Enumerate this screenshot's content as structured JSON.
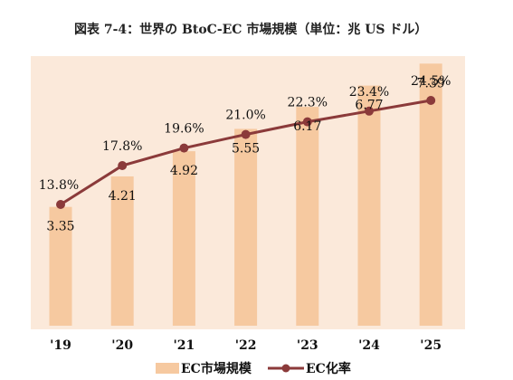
{
  "chart_data": {
    "type": "bar",
    "title": "図表 7-4：世界の BtoC-EC 市場規模（単位：兆 US ドル）",
    "categories": [
      "'19",
      "'20",
      "'21",
      "'22",
      "'23",
      "'24",
      "'25"
    ],
    "series": [
      {
        "name": "EC市場規模",
        "type": "bar",
        "values": [
          3.35,
          4.21,
          4.92,
          5.55,
          6.17,
          6.77,
          7.39
        ],
        "labels": [
          "3.35",
          "4.21",
          "4.92",
          "5.55",
          "6.17",
          "6.77",
          "7.39"
        ],
        "color": "#f6c9a0"
      },
      {
        "name": "EC化率",
        "type": "line",
        "values": [
          13.8,
          17.8,
          19.6,
          21.0,
          22.3,
          23.4,
          24.5
        ],
        "labels": [
          "13.8%",
          "17.8%",
          "19.6%",
          "21.0%",
          "22.3%",
          "23.4%",
          "24.5%"
        ],
        "color": "#8b3a3a"
      }
    ],
    "colors": {
      "plot_background": "#fbe9da",
      "bar": "#f6c9a0",
      "line": "#8b3a3a"
    },
    "grid": false,
    "legend_position": "bottom"
  }
}
